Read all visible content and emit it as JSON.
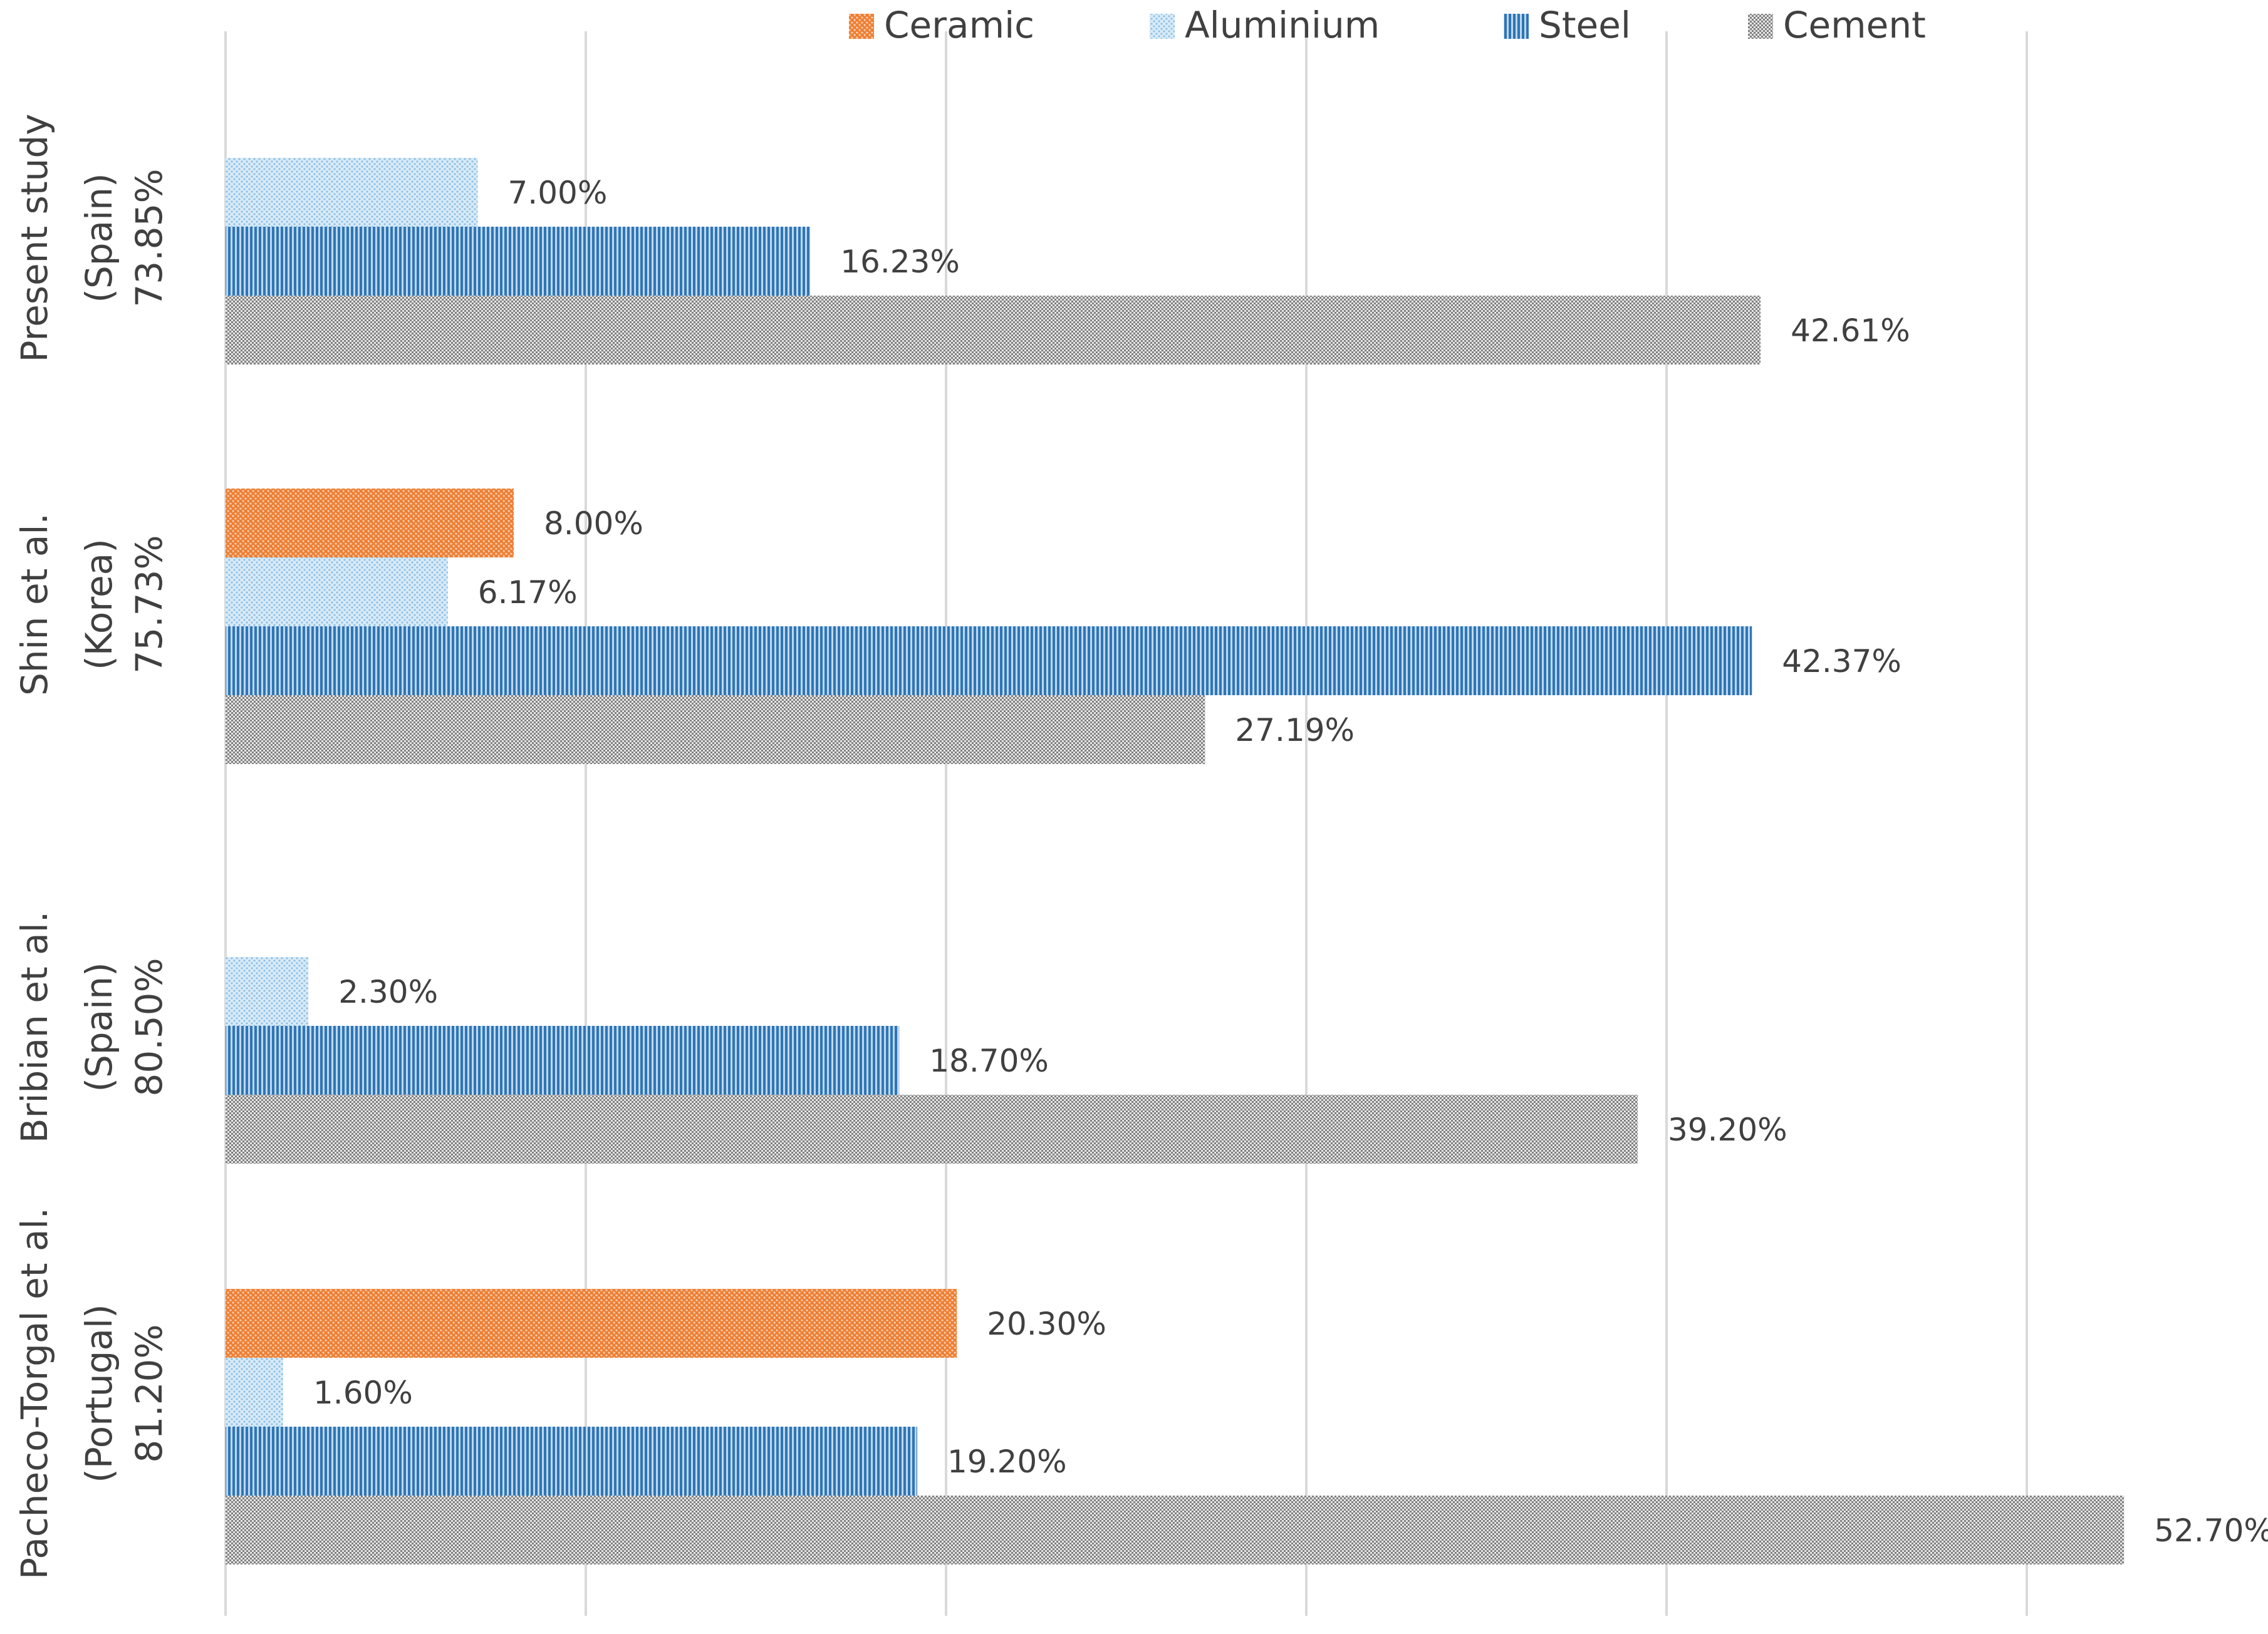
{
  "chart_data": {
    "type": "bar",
    "orientation": "horizontal",
    "categories": [
      {
        "lines": [
          "Present study",
          "(Spain)",
          "73.85%"
        ]
      },
      {
        "lines": [
          "Shin et al.",
          "(Korea)",
          "75.73%"
        ]
      },
      {
        "lines": [
          "Bribian et al.",
          "(Spain)",
          "80.50%"
        ]
      },
      {
        "lines": [
          "Pacheco-Torgal et al.",
          "(Portugal)",
          "81.20%"
        ]
      }
    ],
    "series": [
      {
        "name": "Ceramic",
        "color": "#ED7D31",
        "pattern": "crosshatch",
        "values": [
          null,
          8.0,
          null,
          20.3
        ],
        "labels": [
          "",
          "8.00%",
          "",
          "20.30%"
        ]
      },
      {
        "name": "Aluminium",
        "color": "#9DC3E6",
        "pattern": "dots",
        "values": [
          7.0,
          6.17,
          2.3,
          1.6
        ],
        "labels": [
          "7.00%",
          "6.17%",
          "2.30%",
          "1.60%"
        ]
      },
      {
        "name": "Steel",
        "color": "#2E75B6",
        "pattern": "vertical-lines",
        "values": [
          16.23,
          42.37,
          18.7,
          19.2
        ],
        "labels": [
          "16.23%",
          "42.37%",
          "18.70%",
          "19.20%"
        ]
      },
      {
        "name": "Cement",
        "color": "#7F7F7F",
        "pattern": "dense-dots",
        "values": [
          42.61,
          27.19,
          39.2,
          52.7
        ],
        "labels": [
          "42.61%",
          "27.19%",
          "39.20%",
          "52.70%"
        ]
      }
    ],
    "xlim": [
      0,
      60
    ],
    "x_gridlines": [
      0,
      10,
      20,
      30,
      40,
      50
    ],
    "grid": true,
    "legend_position": "top"
  }
}
